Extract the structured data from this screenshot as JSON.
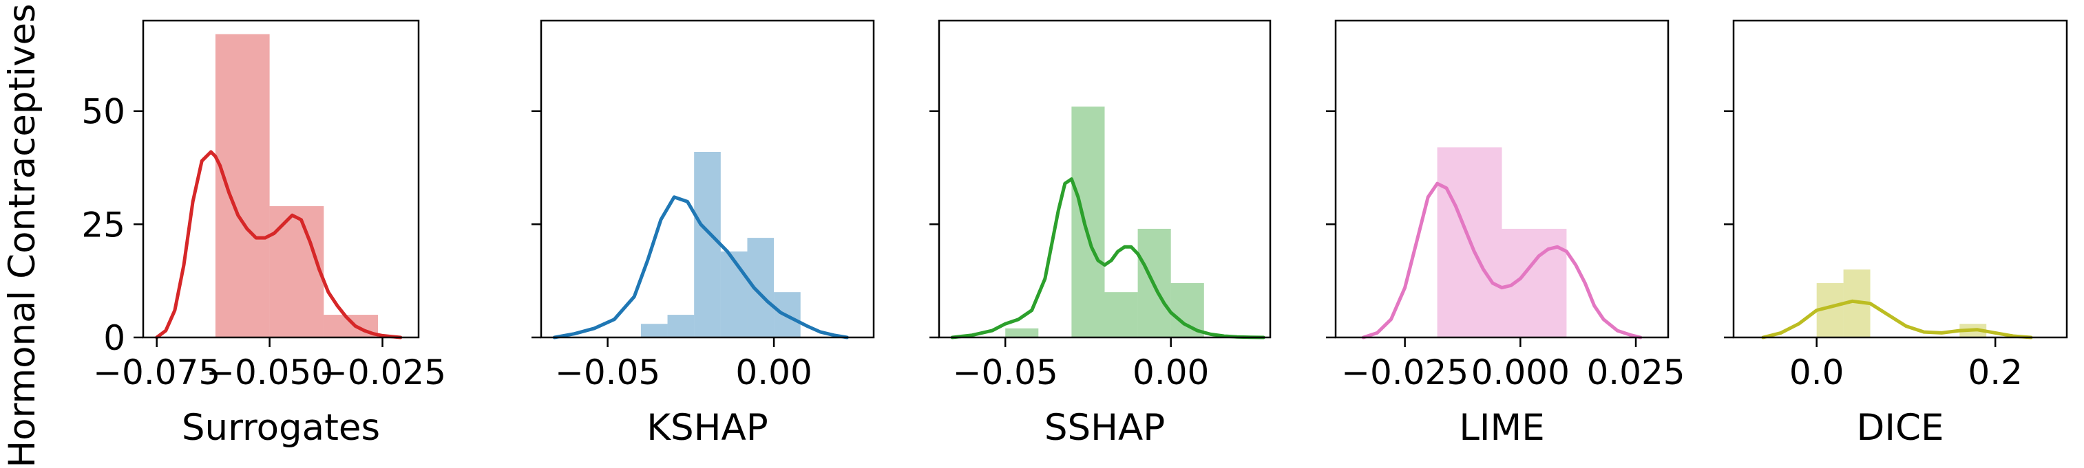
{
  "figure": {
    "ylabel": "Hormonal Contraceptives"
  },
  "chart_data": [
    {
      "type": "histogram",
      "xlabel": "Surrogates",
      "color": "#d62728",
      "xlim": [
        -0.078,
        -0.017
      ],
      "ylim": [
        0,
        70
      ],
      "xticks": [
        -0.075,
        -0.05,
        -0.025
      ],
      "xtick_labels": [
        "−0.075",
        "−0.050",
        "−0.025"
      ],
      "yticks": [
        0,
        25,
        50
      ],
      "ytick_labels": [
        "0",
        "25",
        "50"
      ],
      "show_yticklabels": true,
      "bins": [
        {
          "x0": -0.062,
          "x1": -0.05,
          "count": 67
        },
        {
          "x0": -0.05,
          "x1": -0.038,
          "count": 29
        },
        {
          "x0": -0.038,
          "x1": -0.026,
          "count": 5
        }
      ],
      "kde": {
        "x": [
          -0.075,
          -0.073,
          -0.071,
          -0.069,
          -0.067,
          -0.065,
          -0.063,
          -0.062,
          -0.061,
          -0.059,
          -0.057,
          -0.055,
          -0.053,
          -0.051,
          -0.049,
          -0.047,
          -0.045,
          -0.043,
          -0.041,
          -0.039,
          -0.037,
          -0.035,
          -0.033,
          -0.031,
          -0.029,
          -0.027,
          -0.025,
          -0.023,
          -0.021
        ],
        "y": [
          0,
          1.5,
          6,
          16,
          30,
          39,
          41,
          40,
          38,
          32,
          27,
          24,
          22,
          22,
          23,
          25,
          27,
          26,
          21,
          15,
          10,
          7,
          4.5,
          2.5,
          1.5,
          0.8,
          0.4,
          0.2,
          0
        ]
      }
    },
    {
      "type": "histogram",
      "xlabel": "KSHAP",
      "color": "#1f77b4",
      "xlim": [
        -0.07,
        0.03
      ],
      "ylim": [
        0,
        70
      ],
      "xticks": [
        -0.05,
        0
      ],
      "xtick_labels": [
        "−0.05",
        "0.00"
      ],
      "yticks": [
        0,
        25,
        50
      ],
      "ytick_labels": [
        "0",
        "25",
        "50"
      ],
      "show_yticklabels": false,
      "bins": [
        {
          "x0": -0.04,
          "x1": -0.032,
          "count": 3
        },
        {
          "x0": -0.032,
          "x1": -0.024,
          "count": 5
        },
        {
          "x0": -0.024,
          "x1": -0.016,
          "count": 41
        },
        {
          "x0": -0.016,
          "x1": -0.008,
          "count": 19
        },
        {
          "x0": -0.008,
          "x1": 0.0,
          "count": 22
        },
        {
          "x0": 0.0,
          "x1": 0.008,
          "count": 10
        }
      ],
      "kde": {
        "x": [
          -0.066,
          -0.06,
          -0.054,
          -0.048,
          -0.042,
          -0.038,
          -0.034,
          -0.03,
          -0.026,
          -0.022,
          -0.018,
          -0.014,
          -0.01,
          -0.006,
          -0.002,
          0.002,
          0.006,
          0.01,
          0.014,
          0.018,
          0.022
        ],
        "y": [
          0,
          0.8,
          2,
          4,
          9,
          17,
          26,
          31,
          30,
          25,
          22,
          19,
          15,
          11,
          8,
          5.5,
          4,
          2.5,
          1.2,
          0.5,
          0
        ]
      }
    },
    {
      "type": "histogram",
      "xlabel": "SSHAP",
      "color": "#2ca02c",
      "xlim": [
        -0.07,
        0.03
      ],
      "ylim": [
        0,
        70
      ],
      "xticks": [
        -0.05,
        0
      ],
      "xtick_labels": [
        "−0.05",
        "0.00"
      ],
      "yticks": [
        0,
        25,
        50
      ],
      "ytick_labels": [
        "0",
        "25",
        "50"
      ],
      "show_yticklabels": false,
      "bins": [
        {
          "x0": -0.05,
          "x1": -0.04,
          "count": 2
        },
        {
          "x0": -0.03,
          "x1": -0.02,
          "count": 51
        },
        {
          "x0": -0.02,
          "x1": -0.01,
          "count": 10
        },
        {
          "x0": -0.01,
          "x1": 0.0,
          "count": 24
        },
        {
          "x0": 0.0,
          "x1": 0.01,
          "count": 12
        }
      ],
      "kde": {
        "x": [
          -0.066,
          -0.06,
          -0.054,
          -0.05,
          -0.046,
          -0.042,
          -0.038,
          -0.034,
          -0.032,
          -0.03,
          -0.028,
          -0.026,
          -0.024,
          -0.022,
          -0.02,
          -0.018,
          -0.016,
          -0.014,
          -0.012,
          -0.01,
          -0.008,
          -0.006,
          -0.004,
          -0.002,
          0.0,
          0.004,
          0.008,
          0.012,
          0.016,
          0.02,
          0.024,
          0.028
        ],
        "y": [
          0,
          0.5,
          1.5,
          3,
          4,
          6,
          13,
          28,
          34,
          35,
          31,
          25,
          20,
          17,
          16,
          17,
          19,
          20,
          20,
          18.5,
          16,
          13,
          10,
          7.5,
          5.5,
          3,
          1.5,
          0.7,
          0.3,
          0.1,
          0.05,
          0
        ]
      }
    },
    {
      "type": "histogram",
      "xlabel": "LIME",
      "color": "#e377c2",
      "xlim": [
        -0.04,
        0.032
      ],
      "ylim": [
        0,
        70
      ],
      "xticks": [
        -0.025,
        0,
        0.025
      ],
      "xtick_labels": [
        "−0.025",
        "0.000",
        "0.025"
      ],
      "yticks": [
        0,
        25,
        50
      ],
      "ytick_labels": [
        "0",
        "25",
        "50"
      ],
      "show_yticklabels": false,
      "bins": [
        {
          "x0": -0.018,
          "x1": -0.004,
          "count": 42
        },
        {
          "x0": -0.004,
          "x1": 0.01,
          "count": 24
        }
      ],
      "kde": {
        "x": [
          -0.034,
          -0.031,
          -0.028,
          -0.025,
          -0.022,
          -0.02,
          -0.018,
          -0.016,
          -0.014,
          -0.012,
          -0.01,
          -0.008,
          -0.006,
          -0.004,
          -0.002,
          0.0,
          0.002,
          0.004,
          0.006,
          0.008,
          0.01,
          0.012,
          0.014,
          0.016,
          0.018,
          0.021,
          0.024,
          0.026
        ],
        "y": [
          0,
          1,
          4,
          11,
          23,
          31,
          34,
          33,
          29,
          24,
          19,
          15,
          12,
          11,
          11.5,
          13,
          15.5,
          18,
          19.5,
          20,
          19,
          16,
          12,
          7,
          4,
          1.5,
          0.5,
          0
        ]
      }
    },
    {
      "type": "histogram",
      "xlabel": "DICE",
      "color": "#bcbd22",
      "xlim": [
        -0.093,
        0.28
      ],
      "ylim": [
        0,
        70
      ],
      "xticks": [
        0,
        0.2
      ],
      "xtick_labels": [
        "0.0",
        "0.2"
      ],
      "yticks": [
        0,
        25,
        50
      ],
      "ytick_labels": [
        "0",
        "25",
        "50"
      ],
      "show_yticklabels": false,
      "bins": [
        {
          "x0": 0.0,
          "x1": 0.03,
          "count": 12
        },
        {
          "x0": 0.03,
          "x1": 0.06,
          "count": 15
        },
        {
          "x0": 0.16,
          "x1": 0.19,
          "count": 3
        }
      ],
      "kde": {
        "x": [
          -0.06,
          -0.04,
          -0.02,
          0.0,
          0.02,
          0.04,
          0.06,
          0.08,
          0.1,
          0.12,
          0.14,
          0.16,
          0.18,
          0.2,
          0.22,
          0.24
        ],
        "y": [
          0,
          1,
          3,
          6,
          7,
          8,
          7.5,
          5,
          2.5,
          1.2,
          1,
          1.5,
          1.7,
          1,
          0.3,
          0
        ]
      }
    }
  ]
}
